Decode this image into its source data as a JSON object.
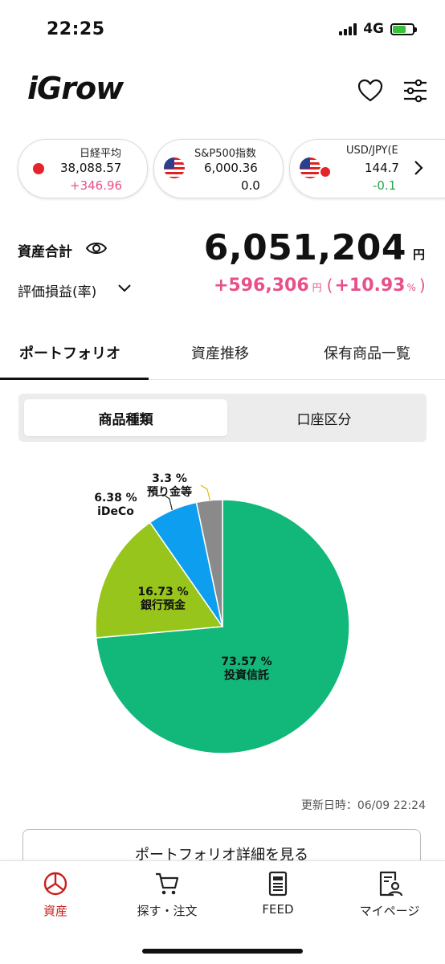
{
  "status": {
    "time": "22:25",
    "network": "4G"
  },
  "header": {
    "logo": "iGrow"
  },
  "indices": [
    {
      "name": "日経平均",
      "value": "38,088.57",
      "change": "+346.96",
      "change_color": "#e8508a",
      "flag": "jp-flag-icon"
    },
    {
      "name": "S&P500指数",
      "value": "6,000.36",
      "change": "0.0",
      "change_color": "#111111",
      "flag": "us-flag-icon"
    },
    {
      "name": "USD/JPY(E",
      "value": "144.7",
      "change": "-0.1",
      "change_color": "#22a84a",
      "flag": "us-jp-flag-icon"
    }
  ],
  "summary": {
    "total_label": "資産合計",
    "total_value": "6,051,204",
    "yen": "円",
    "pl_label": "評価損益(率)",
    "pl_value": "+596,306",
    "pl_yen": "円",
    "pl_rate_open": "(",
    "pl_rate": "+10.93",
    "pl_rate_unit": "%",
    "pl_rate_close": ")"
  },
  "tabs": [
    {
      "label": "ポートフォリオ",
      "active": true
    },
    {
      "label": "資産推移",
      "active": false
    },
    {
      "label": "保有商品一覧",
      "active": false
    }
  ],
  "segment": {
    "options": [
      "商品種類",
      "口座区分"
    ],
    "selected": "商品種類"
  },
  "chart_data": {
    "type": "pie",
    "slices": [
      {
        "label": "投資信託",
        "value": 73.57,
        "value_text": "73.57 %",
        "color": "#12b87a"
      },
      {
        "label": "銀行預金",
        "value": 16.73,
        "value_text": "16.73 %",
        "color": "#98c51b"
      },
      {
        "label": "iDeCo",
        "value": 6.38,
        "value_text": "6.38 %",
        "color": "#0e9ef0"
      },
      {
        "label": "預り金等",
        "value": 3.3,
        "value_text": "3.3 %",
        "color": "#8a8a8a"
      }
    ]
  },
  "updated": {
    "label": "更新日時：06/09 22:24"
  },
  "detail_button": "ポートフォリオ詳細を見る",
  "nav": [
    {
      "label": "資産",
      "icon": "pie-chart-icon",
      "active": true
    },
    {
      "label": "探す・注文",
      "icon": "cart-icon",
      "active": false
    },
    {
      "label": "FEED",
      "icon": "feed-icon",
      "active": false
    },
    {
      "label": "マイページ",
      "icon": "profile-icon",
      "active": false
    }
  ],
  "colors": {
    "accent_pink": "#e8508a",
    "active_red": "#c8201e",
    "positive_green": "#22a84a"
  }
}
